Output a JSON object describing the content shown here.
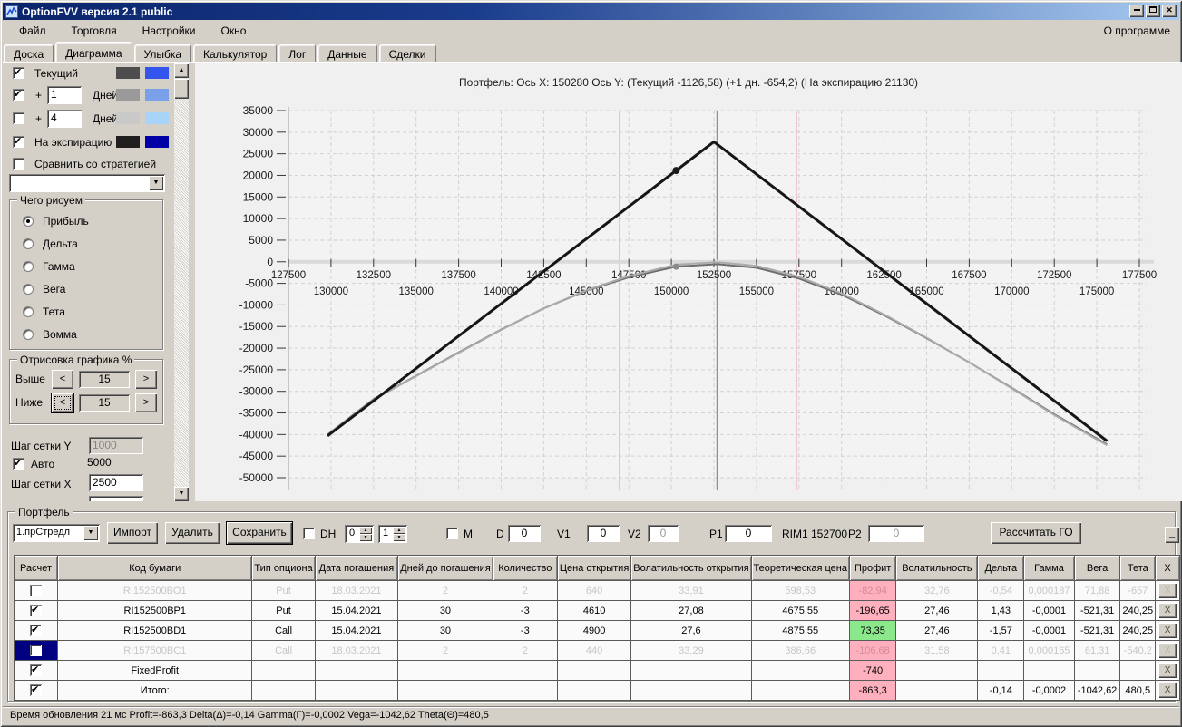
{
  "window": {
    "title": "OptionFVV версия 2.1 public",
    "min": "_",
    "max": "□",
    "close": "×"
  },
  "menu": {
    "items": [
      "Файл",
      "Торговля",
      "Настройки",
      "Окно"
    ],
    "right": "О программе"
  },
  "tabs": [
    {
      "label": "Доска",
      "active": false
    },
    {
      "label": "Диаграмма",
      "active": true
    },
    {
      "label": "Улыбка",
      "active": false
    },
    {
      "label": "Калькулятор",
      "active": false
    },
    {
      "label": "Лог",
      "active": false
    },
    {
      "label": "Данные",
      "active": false
    },
    {
      "label": "Сделки",
      "active": false
    }
  ],
  "left_panel": {
    "curves": [
      {
        "checked": true,
        "prefix": "",
        "value": "",
        "label": "Текущий",
        "swatch1": "#4d4d4d",
        "swatch2": "#3355ee"
      },
      {
        "checked": true,
        "prefix": "+",
        "value": "1",
        "label": "Дней",
        "swatch1": "#9a9a9a",
        "swatch2": "#7aa0ea"
      },
      {
        "checked": false,
        "prefix": "+",
        "value": "4",
        "label": "Дней",
        "swatch1": "#c9c9c9",
        "swatch2": "#a8d4f7"
      },
      {
        "checked": true,
        "prefix": "",
        "value": "",
        "label": "На экспирацию",
        "swatch1": "#1f1f1f",
        "swatch2": "#0000a6"
      }
    ],
    "compare": {
      "checked": false,
      "label": "Сравнить со стратегией"
    },
    "strategy_combo_value": "",
    "what_group": {
      "title": "Чего рисуем",
      "options": [
        "Прибыль",
        "Дельта",
        "Гамма",
        "Вега",
        "Тета",
        "Вомма"
      ],
      "selected": 0
    },
    "range_group": {
      "title": "Отрисовка графика %",
      "above_label": "Выше",
      "above": "15",
      "below_label": "Ниже",
      "below": "15",
      "dec": "<",
      "inc": ">"
    },
    "grid_y_label": "Шаг сетки Y",
    "grid_y": "1000",
    "auto": {
      "checked": true,
      "label": "Авто",
      "value": "5000"
    },
    "grid_x_label": "Шаг сетки X",
    "grid_x": "2500"
  },
  "chart_data": {
    "type": "line",
    "title": "Портфель: Ось X: 150280 Ось Y:  (Текущий -1126,58)  (+1 дн. -654,2)  (На экспирацию 21130)",
    "xlabel": "",
    "ylabel": "",
    "xlim": [
      127500,
      177500
    ],
    "ylim": [
      -50000,
      35000
    ],
    "x_step": 2500,
    "y_step": 5000,
    "grid": true,
    "legend": "none",
    "y_ticks": [
      35000,
      30000,
      25000,
      20000,
      15000,
      10000,
      5000,
      0,
      -5000,
      -10000,
      -15000,
      -20000,
      -25000,
      -30000,
      -35000,
      -40000,
      -45000,
      -50000
    ],
    "x_ticks_row1": [
      127500,
      132500,
      137500,
      142500,
      147500,
      152500,
      157500,
      162500,
      167500,
      172500,
      177500
    ],
    "x_ticks_row2": [
      130000,
      135000,
      140000,
      145000,
      150000,
      155000,
      160000,
      165000,
      170000,
      175000
    ],
    "vlines": [
      {
        "x": 146950,
        "color": "#f2b6c3",
        "w": 1.5
      },
      {
        "x": 152700,
        "color": "#7e94ab",
        "w": 2
      },
      {
        "x": 157350,
        "color": "#f2b6c3",
        "w": 1.5
      }
    ],
    "series": [
      {
        "name": "Текущий",
        "color": "#6e6e6e",
        "width": 2,
        "points": [
          [
            129800,
            -40000
          ],
          [
            132500,
            -31800
          ],
          [
            135000,
            -26400
          ],
          [
            137500,
            -21000
          ],
          [
            140000,
            -15700
          ],
          [
            142500,
            -10800
          ],
          [
            145000,
            -6700
          ],
          [
            147500,
            -3600
          ],
          [
            150280,
            -1126.58
          ],
          [
            152700,
            -550
          ],
          [
            155000,
            -1400
          ],
          [
            157500,
            -3900
          ],
          [
            160000,
            -7600
          ],
          [
            162500,
            -12400
          ],
          [
            165000,
            -17700
          ],
          [
            167500,
            -23300
          ],
          [
            170000,
            -29200
          ],
          [
            172500,
            -35300
          ],
          [
            175600,
            -42300
          ]
        ]
      },
      {
        "name": "+1 дн.",
        "color": "#ababab",
        "width": 2,
        "points": [
          [
            129800,
            -40100
          ],
          [
            132500,
            -31900
          ],
          [
            135000,
            -26500
          ],
          [
            137500,
            -21100
          ],
          [
            140000,
            -15800
          ],
          [
            142500,
            -10800
          ],
          [
            145000,
            -6600
          ],
          [
            147500,
            -3300
          ],
          [
            150280,
            -654.2
          ],
          [
            152700,
            -100
          ],
          [
            155000,
            -900
          ],
          [
            157500,
            -3500
          ],
          [
            160000,
            -7300
          ],
          [
            162500,
            -12200
          ],
          [
            165000,
            -17600
          ],
          [
            167500,
            -23300
          ],
          [
            170000,
            -29300
          ],
          [
            172500,
            -35500
          ],
          [
            175600,
            -42500
          ]
        ]
      },
      {
        "name": "На экспирацию",
        "color": "#161616",
        "width": 3,
        "points": [
          [
            129800,
            -40310
          ],
          [
            152500,
            27790
          ],
          [
            175600,
            -41510
          ]
        ]
      }
    ],
    "markers": [
      {
        "x": 150280,
        "y": 21130,
        "color": "#1b1b1b",
        "r": 4
      },
      {
        "x": 150280,
        "y": -1126.58,
        "color": "#8a8a8a",
        "r": 3.5
      }
    ]
  },
  "portfolio": {
    "group_title": "Портфель",
    "preset": "1.прСтредл",
    "import_btn": "Импорт",
    "delete_btn": "Удалить",
    "save_btn": "Сохранить",
    "dh": {
      "checked": false,
      "label": "DH"
    },
    "spin1": "0",
    "spin2": "1",
    "m": {
      "checked": false,
      "label": "M"
    },
    "d_label": "D",
    "d_value": "0",
    "v1_label": "V1",
    "v1_value": "0",
    "v2_label": "V2",
    "v2_value": "0",
    "p1_label": "P1",
    "p1_value": "0",
    "rim_label": "RIM1 152700",
    "p2_label": "P2",
    "p2_value": "0",
    "calc_btn": "Рассчитать ГО",
    "min_btn": "_"
  },
  "table": {
    "headers": [
      "Расчет",
      "Код бумаги",
      "Тип опциона",
      "Дата погашения",
      "Дней до погашения",
      "Количество",
      "Цена открытия",
      "Волатильность открытия",
      "Теоретическая цена",
      "Профит",
      "Волатильность",
      "Дельта",
      "Гамма",
      "Вега",
      "Тета",
      "X"
    ],
    "close_label": "X",
    "rows": [
      {
        "checked": false,
        "disabled": true,
        "selected_cell": false,
        "profit_color": "pink",
        "cells": [
          "RI152500BO1",
          "Put",
          "18.03.2021",
          "2",
          "2",
          "640",
          "33,91",
          "598,53",
          "-82,94",
          "32,76",
          "-0,54",
          "0,000187",
          "71,88",
          "-657"
        ]
      },
      {
        "checked": true,
        "disabled": false,
        "selected_cell": false,
        "profit_color": "pink",
        "cells": [
          "RI152500BP1",
          "Put",
          "15.04.2021",
          "30",
          "-3",
          "4610",
          "27,08",
          "4675,55",
          "-196,65",
          "27,46",
          "1,43",
          "-0,0001",
          "-521,31",
          "240,25"
        ]
      },
      {
        "checked": true,
        "disabled": false,
        "selected_cell": false,
        "profit_color": "green",
        "cells": [
          "RI152500BD1",
          "Call",
          "15.04.2021",
          "30",
          "-3",
          "4900",
          "27,6",
          "4875,55",
          "73,35",
          "27,46",
          "-1,57",
          "-0,0001",
          "-521,31",
          "240,25"
        ]
      },
      {
        "checked": false,
        "disabled": true,
        "selected_cell": true,
        "profit_color": "pink",
        "cells": [
          "RI157500BC1",
          "Call",
          "18.03.2021",
          "2",
          "2",
          "440",
          "33,29",
          "386,66",
          "-106,68",
          "31,58",
          "0,41",
          "0,000165",
          "61,31",
          "-540,2"
        ]
      },
      {
        "checked": true,
        "disabled": false,
        "selected_cell": false,
        "profit_color": "pink",
        "cells": [
          "FixedProfit",
          "",
          "",
          "",
          "",
          "",
          "",
          "",
          "-740",
          "",
          "",
          "",
          "",
          ""
        ]
      },
      {
        "checked": true,
        "disabled": false,
        "selected_cell": false,
        "profit_color": "pink",
        "cells": [
          "Итого:",
          "",
          "",
          "",
          "",
          "",
          "",
          "",
          "-863,3",
          "",
          "-0,14",
          "-0,0002",
          "-1042,62",
          "480,5"
        ]
      }
    ]
  },
  "statusbar": {
    "text": "Время обновления 21 мс  Profit=-863,3 Delta(Δ)=-0,14 Gamma(Γ)=-0,0002 Vega=-1042,62 Theta(Θ)=480,5"
  }
}
